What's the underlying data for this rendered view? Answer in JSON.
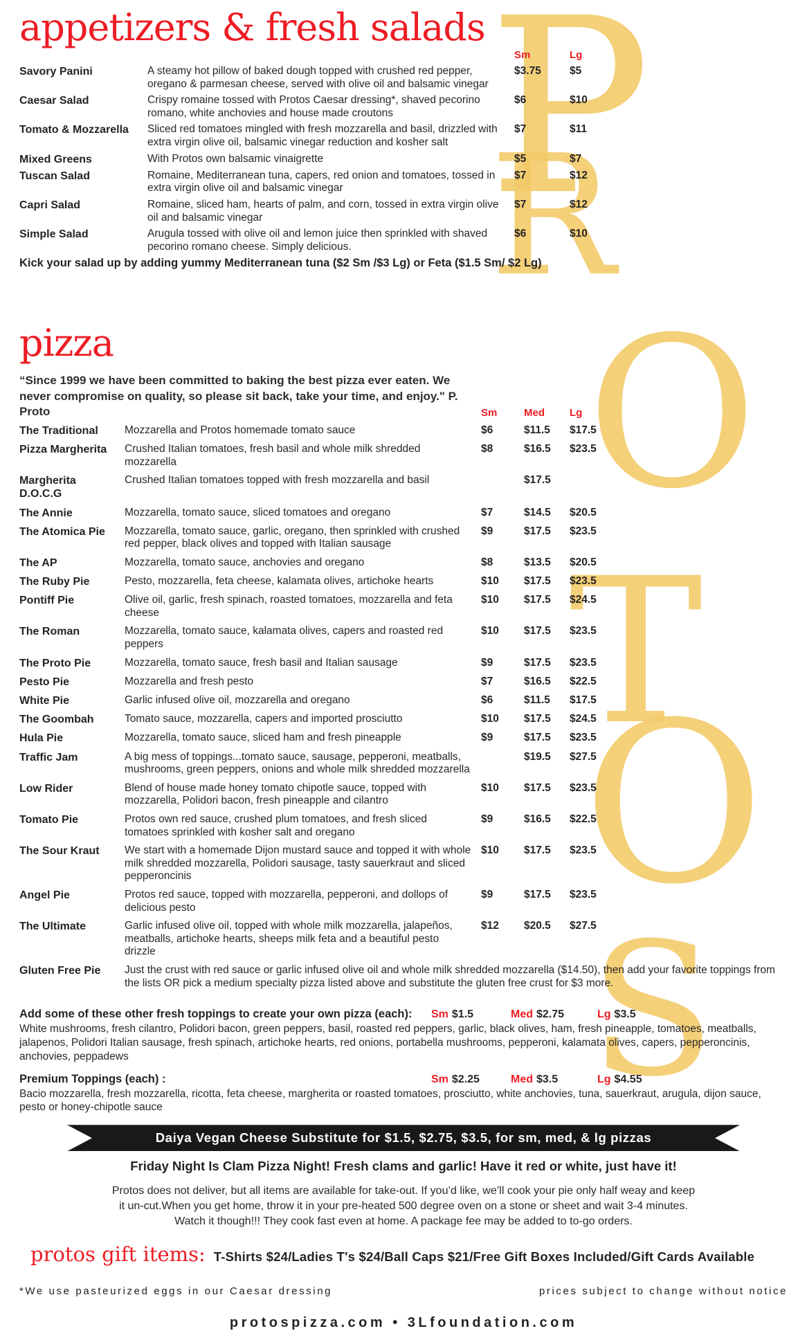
{
  "theme": {
    "accent_red": "#ed1c24",
    "watermark_gold": "#f3ca67",
    "banner_black": "#191919"
  },
  "watermark": {
    "letters": [
      "P",
      "R",
      "O",
      "T",
      "O",
      "S"
    ]
  },
  "appetizers": {
    "title": "appetizers & fresh salads",
    "col_headers": {
      "sm": "Sm",
      "lg": "Lg"
    },
    "items": [
      {
        "name": "Savory Panini",
        "desc": "A steamy hot pillow of baked dough topped with crushed red pepper, oregano & parmesan cheese, served with olive oil and balsamic vinegar",
        "sm": "$3.75",
        "lg": "$5"
      },
      {
        "name": "Caesar Salad",
        "desc": "Crispy romaine tossed with Protos Caesar dressing*, shaved pecorino romano, white anchovies and house made croutons",
        "sm": "$6",
        "lg": "$10"
      },
      {
        "name": "Tomato & Mozzarella",
        "desc": "Sliced red tomatoes mingled with fresh mozzarella and basil, drizzled with extra virgin olive oil, balsamic vinegar reduction and kosher salt",
        "sm": "$7",
        "lg": "$11"
      },
      {
        "name": "Mixed Greens",
        "desc": "With Protos own balsamic vinaigrette",
        "sm": "$5",
        "lg": "$7"
      },
      {
        "name": "Tuscan Salad",
        "desc": "Romaine, Mediterranean tuna, capers, red onion and tomatoes, tossed in extra virgin olive oil and balsamic vinegar",
        "sm": "$7",
        "lg": "$12"
      },
      {
        "name": "Capri Salad",
        "desc": "Romaine, sliced ham, hearts of palm, and corn, tossed in extra virgin olive oil and balsamic vinegar",
        "sm": "$7",
        "lg": "$12"
      },
      {
        "name": "Simple Salad",
        "desc": "Arugula tossed with olive oil and lemon juice then sprinkled with shaved pecorino romano cheese. Simply delicious.",
        "sm": "$6",
        "lg": "$10"
      }
    ],
    "note": "Kick your salad up by adding yummy Mediterranean tuna ($2 Sm /$3 Lg)  or Feta ($1.5 Sm/ $2 Lg)"
  },
  "pizza": {
    "title": "pizza",
    "quote": "“Since 1999 we have been committed to baking the best pizza ever eaten. We never compromise on quality, so please sit back, take your time, and enjoy.\" P. Proto",
    "col_headers": {
      "sm": "Sm",
      "med": "Med",
      "lg": "Lg"
    },
    "items": [
      {
        "name": "The Traditional",
        "desc": "Mozzarella and Protos homemade tomato sauce",
        "sm": "$6",
        "med": "$11.5",
        "lg": "$17.5"
      },
      {
        "name": "Pizza Margherita",
        "desc": "Crushed Italian tomatoes, fresh basil and whole milk shredded mozzarella",
        "sm": "$8",
        "med": "$16.5",
        "lg": "$23.5"
      },
      {
        "name": "Margherita D.O.C.G",
        "desc": "Crushed Italian tomatoes topped with fresh mozzarella and basil",
        "sm": "",
        "med": "$17.5",
        "lg": ""
      },
      {
        "name": "The Annie",
        "desc": "Mozzarella, tomato sauce, sliced tomatoes and oregano",
        "sm": "$7",
        "med": "$14.5",
        "lg": "$20.5"
      },
      {
        "name": "The Atomica Pie",
        "desc": "Mozzarella, tomato sauce, garlic, oregano, then sprinkled with crushed red pepper, black olives and topped with Italian sausage",
        "sm": "$9",
        "med": "$17.5",
        "lg": "$23.5"
      },
      {
        "name": "The AP",
        "desc": "Mozzarella, tomato sauce, anchovies and oregano",
        "sm": "$8",
        "med": "$13.5",
        "lg": "$20.5"
      },
      {
        "name": "The Ruby Pie",
        "desc": "Pesto, mozzarella, feta cheese, kalamata olives, artichoke hearts",
        "sm": "$10",
        "med": "$17.5",
        "lg": "$23.5"
      },
      {
        "name": "Pontiff Pie",
        "desc": "Olive oil, garlic, fresh spinach, roasted tomatoes, mozzarella and feta cheese",
        "sm": "$10",
        "med": "$17.5",
        "lg": "$24.5"
      },
      {
        "name": "The Roman",
        "desc": "Mozzarella, tomato sauce, kalamata olives, capers and roasted red peppers",
        "sm": "$10",
        "med": "$17.5",
        "lg": "$23.5"
      },
      {
        "name": "The Proto Pie",
        "desc": "Mozzarella, tomato sauce, fresh basil and Italian sausage",
        "sm": "$9",
        "med": "$17.5",
        "lg": "$23.5"
      },
      {
        "name": "Pesto Pie",
        "desc": "Mozzarella and fresh pesto",
        "sm": "$7",
        "med": "$16.5",
        "lg": "$22.5"
      },
      {
        "name": "White Pie",
        "desc": "Garlic infused olive oil, mozzarella and oregano",
        "sm": "$6",
        "med": "$11.5",
        "lg": "$17.5"
      },
      {
        "name": "The Goombah",
        "desc": "Tomato sauce, mozzarella, capers and imported prosciutto",
        "sm": "$10",
        "med": "$17.5",
        "lg": "$24.5"
      },
      {
        "name": "Hula Pie",
        "desc": "Mozzarella, tomato sauce, sliced ham and fresh pineapple",
        "sm": "$9",
        "med": "$17.5",
        "lg": "$23.5"
      },
      {
        "name": "Traffic Jam",
        "desc": "A big mess of toppings...tomato sauce, sausage, pepperoni, meatballs, mushrooms, green peppers, onions and whole milk shredded mozzarella",
        "sm": "",
        "med": "$19.5",
        "lg": "$27.5"
      },
      {
        "name": "Low Rider",
        "desc": "Blend of house made honey tomato chipotle sauce, topped with mozzarella, Polidori bacon, fresh pineapple and cilantro",
        "sm": "$10",
        "med": "$17.5",
        "lg": "$23.5"
      },
      {
        "name": "Tomato Pie",
        "desc": "Protos own red sauce, crushed plum tomatoes, and fresh sliced tomatoes sprinkled with kosher salt and oregano",
        "sm": "$9",
        "med": "$16.5",
        "lg": "$22.5"
      },
      {
        "name": "The Sour Kraut",
        "desc": "We start with a homemade Dijon mustard sauce and topped it with whole milk shredded mozzarella, Polidori sausage, tasty sauerkraut and sliced pepperoncinis",
        "sm": "$10",
        "med": "$17.5",
        "lg": "$23.5"
      },
      {
        "name": "Angel Pie",
        "desc": "Protos red sauce, topped with mozzarella, pepperoni, and dollops of delicious pesto",
        "sm": "$9",
        "med": "$17.5",
        "lg": "$23.5"
      },
      {
        "name": "The Ultimate",
        "desc": "Garlic infused olive oil, topped with whole milk mozzarella, jalapeños, meatballs, artichoke hearts, sheeps milk feta and a beautiful pesto drizzle",
        "sm": "$12",
        "med": "$20.5",
        "lg": "$27.5"
      }
    ],
    "gluten_free": {
      "name": "Gluten Free Pie",
      "desc": "Just the crust with red sauce or garlic infused olive oil and whole milk shredded mozzarella ($14.50), then add your favorite toppings from the lists OR pick a medium specialty pizza listed above and substitute the gluten free crust for $3 more."
    }
  },
  "toppings": {
    "fresh": {
      "heading": "Add some of these other fresh toppings to create your own pizza (each):",
      "sm_label": "Sm",
      "sm_value": "$1.5",
      "med_label": "Med",
      "med_value": "$2.75",
      "lg_label": "Lg",
      "lg_value": "$3.5",
      "list": "White mushrooms, fresh cilantro, Polidori bacon, green peppers, basil, roasted red peppers, garlic, black olives, ham, fresh pineapple, tomatoes, meatballs, jalapenos, Polidori Italian sausage, fresh spinach, artichoke hearts, red onions, portabella mushrooms, pepperoni, kalamata olives, capers, pepperoncinis, anchovies, peppadews"
    },
    "premium": {
      "heading": "Premium Toppings (each) :",
      "sm_label": "Sm",
      "sm_value": "$2.25",
      "med_label": "Med",
      "med_value": "$3.5",
      "lg_label": "Lg",
      "lg_value": "$4.55",
      "list": "Bacio mozzarella, fresh mozzarella, ricotta, feta cheese, margherita or roasted tomatoes, prosciutto, white anchovies, tuna, sauerkraut, arugula, dijon sauce, pesto or honey-chipotle sauce"
    }
  },
  "banner": {
    "text": "Daiya Vegan Cheese Substitute for $1.5, $2.75, $3.5, for sm, med, & lg pizzas"
  },
  "clam_note": "Friday Night Is Clam Pizza Night! Fresh clams and garlic! Have it red or white, just have it!",
  "takeout_lines": [
    "Protos does not deliver, but all items are available for take-out. If you’d like, we’ll cook your pie only half weay and keep",
    "it un-cut.When you get home, throw it in your pre-heated 500 degree oven on a stone or sheet and wait 3-4 minutes.",
    "Watch it though!!! They cook fast even at home. A package fee may be added to to-go orders."
  ],
  "gift": {
    "label": "protos gift items:",
    "text": "T-Shirts $24/Ladies T's $24/Ball Caps $21/Free Gift Boxes Included/Gift Cards Available"
  },
  "footnotes": {
    "left": "*We use pasteurized eggs in our Caesar dressing",
    "right": "prices subject to change without notice"
  },
  "footer": "protospizza.com • 3Lfoundation.com"
}
